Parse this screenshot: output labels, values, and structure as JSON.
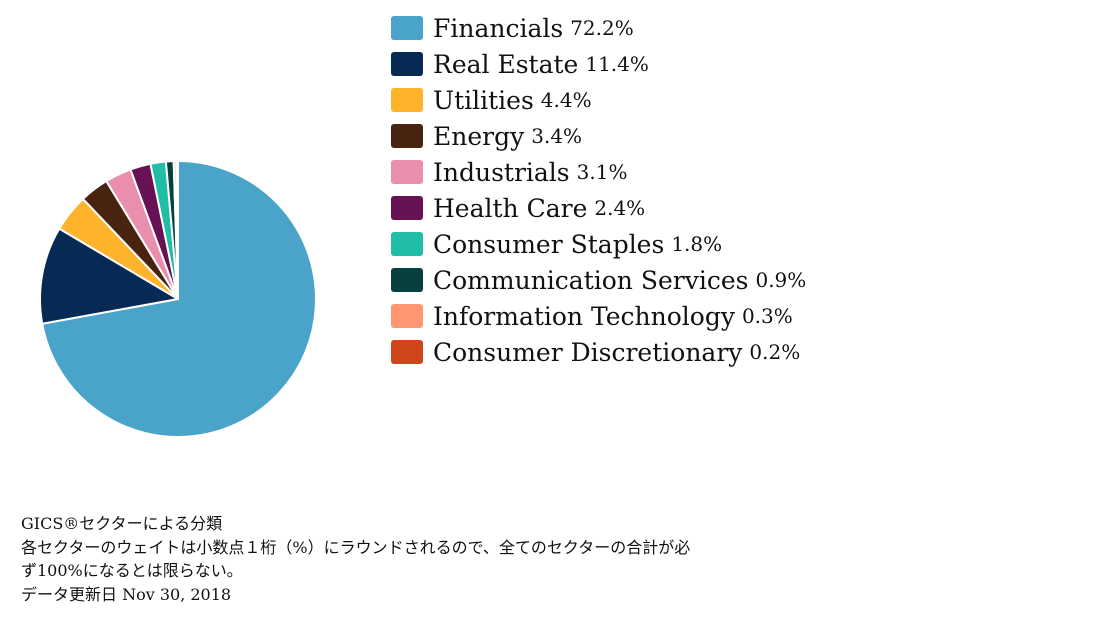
{
  "chart_data": {
    "type": "pie",
    "categories": [
      "Financials",
      "Real Estate",
      "Utilities",
      "Energy",
      "Industrials",
      "Health Care",
      "Consumer Staples",
      "Communication Services",
      "Information Technology",
      "Consumer Discretionary"
    ],
    "values": [
      72.2,
      11.4,
      4.4,
      3.4,
      3.1,
      2.4,
      1.8,
      0.9,
      0.3,
      0.2
    ],
    "value_labels": [
      "72.2%",
      "11.4%",
      "4.4%",
      "3.4%",
      "3.1%",
      "2.4%",
      "1.8%",
      "0.9%",
      "0.3%",
      "0.2%"
    ],
    "colors": [
      "#4aa3c9",
      "#072a55",
      "#fdb32b",
      "#48230f",
      "#e98ead",
      "#661254",
      "#20bea6",
      "#07403f",
      "#ff9871",
      "#d0461a"
    ],
    "legend_position": "right",
    "title": ""
  },
  "notes": {
    "line1": "GICS®セクターによる分類",
    "line2": "各セクターのウェイトは小数点１桁（%）にラウンドされるので、全てのセクターの合計が必",
    "line3": "ず100%になるとは限らない。",
    "line4": "データ更新日 Nov 30, 2018"
  }
}
